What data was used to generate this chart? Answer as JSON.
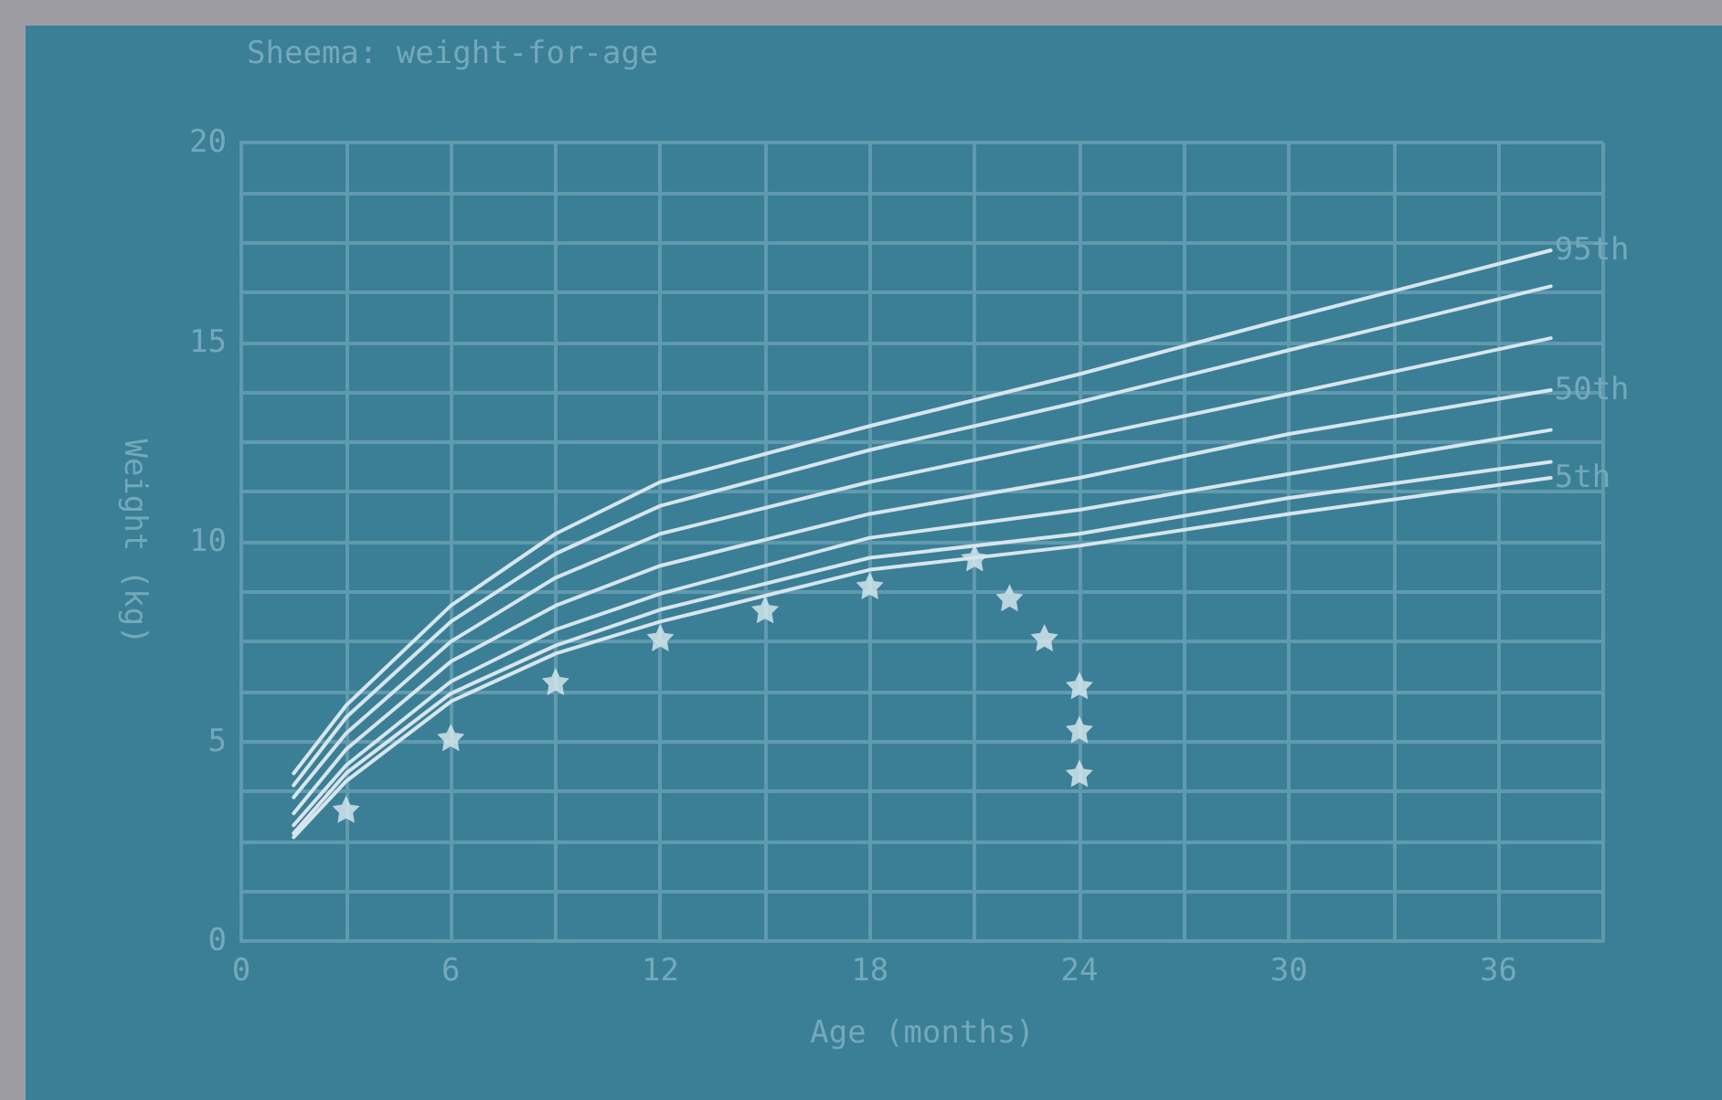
{
  "chart_data": {
    "type": "line",
    "title": "Sheema: weight-for-age",
    "xlabel": "Age (months)",
    "ylabel": "Weight (kg)",
    "xlim": [
      0,
      39
    ],
    "xticks": [
      0,
      {
        "value": 3,
        "label": null
      },
      6,
      {
        "value": 9,
        "label": null
      },
      12,
      {
        "value": 15,
        "label": null
      },
      18,
      {
        "value": 21,
        "label": null
      },
      24,
      {
        "value": 27,
        "label": null
      },
      30,
      {
        "value": 33,
        "label": null
      },
      36,
      {
        "value": 39,
        "label": null
      }
    ],
    "ylim": [
      0,
      20
    ],
    "yticks": [
      0,
      {
        "value": 1.25,
        "label": null
      },
      {
        "value": 2.5,
        "label": null
      },
      {
        "value": 3.75,
        "label": null
      },
      5,
      {
        "value": 6.25,
        "label": null
      },
      {
        "value": 7.5,
        "label": null
      },
      {
        "value": 8.75,
        "label": null
      },
      10,
      {
        "value": 11.25,
        "label": null
      },
      {
        "value": 12.5,
        "label": null
      },
      {
        "value": 13.75,
        "label": null
      },
      15,
      {
        "value": 16.25,
        "label": null
      },
      {
        "value": 17.5,
        "label": null
      },
      {
        "value": 18.75,
        "label": null
      },
      20
    ],
    "grid": true,
    "legend": false,
    "marker": "none",
    "line_style": "solid",
    "series": [
      {
        "name": "95th",
        "color": "#d6e6ec",
        "x": [
          1.5,
          3,
          6,
          9,
          12,
          18,
          24,
          30,
          37.5
        ],
        "values": [
          4.2,
          5.9,
          8.4,
          10.2,
          11.5,
          12.9,
          14.2,
          15.6,
          17.3
        ]
      },
      {
        "color": "#d6e6ec",
        "x": [
          1.5,
          3,
          6,
          9,
          12,
          18,
          24,
          30,
          37.5
        ],
        "values": [
          3.9,
          5.6,
          8.0,
          9.7,
          10.9,
          12.3,
          13.5,
          14.8,
          16.4
        ]
      },
      {
        "color": "#d6e6ec",
        "x": [
          1.5,
          3,
          6,
          9,
          12,
          18,
          24,
          30,
          37.5
        ],
        "values": [
          3.6,
          5.2,
          7.5,
          9.1,
          10.2,
          11.5,
          12.6,
          13.7,
          15.1
        ]
      },
      {
        "name": "50th",
        "color": "#d6e6ec",
        "x": [
          1.5,
          3,
          6,
          9,
          12,
          18,
          24,
          30,
          37.5
        ],
        "values": [
          3.2,
          4.8,
          7.0,
          8.4,
          9.4,
          10.7,
          11.6,
          12.7,
          13.8
        ]
      },
      {
        "color": "#d6e6ec",
        "x": [
          1.5,
          3,
          6,
          9,
          12,
          18,
          24,
          30,
          37.5
        ],
        "values": [
          2.9,
          4.4,
          6.5,
          7.8,
          8.7,
          10.1,
          10.8,
          11.7,
          12.8
        ]
      },
      {
        "color": "#d6e6ec",
        "x": [
          1.5,
          3,
          6,
          9,
          12,
          18,
          24,
          30,
          37.5
        ],
        "values": [
          2.7,
          4.2,
          6.2,
          7.4,
          8.3,
          9.6,
          10.2,
          11.1,
          12.0
        ]
      },
      {
        "name": "5th",
        "color": "#d6e6ec",
        "x": [
          1.5,
          3,
          6,
          9,
          12,
          18,
          24,
          30,
          37.5
        ],
        "values": [
          2.6,
          4.0,
          6.0,
          7.2,
          8.0,
          9.3,
          9.9,
          10.7,
          11.6
        ]
      },
      {
        "type": "scatter",
        "marker": "star",
        "color": "#dcebf0",
        "x": [
          3,
          6,
          9,
          12,
          15,
          18,
          21,
          22,
          23,
          24,
          24,
          24
        ],
        "values": [
          3.3,
          5.1,
          6.5,
          7.6,
          8.3,
          8.9,
          9.6,
          8.6,
          7.6,
          6.4,
          5.3,
          4.2
        ]
      }
    ]
  }
}
